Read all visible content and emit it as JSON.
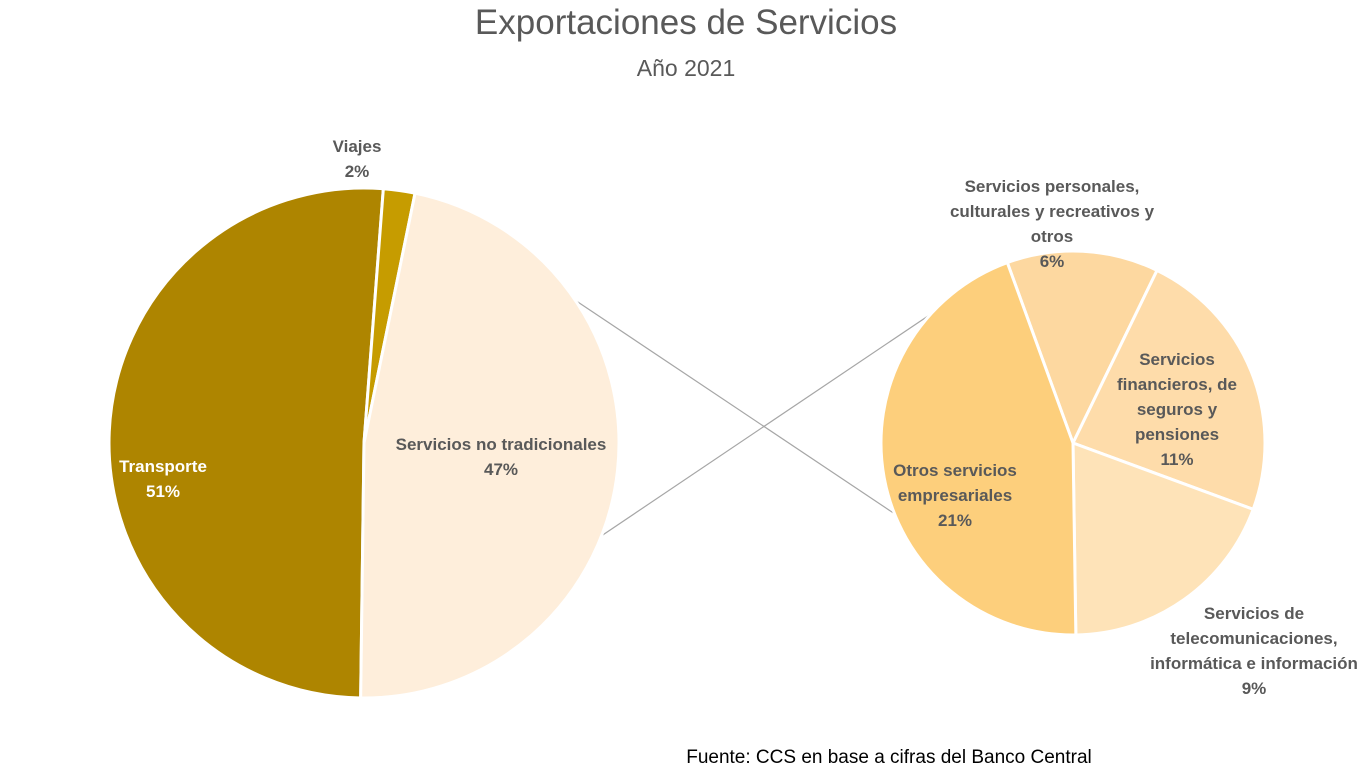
{
  "chart_data": [
    {
      "type": "pie",
      "title": "Exportaciones de Servicios",
      "subtitle": "Año 2021",
      "slices": [
        {
          "label": "Transporte",
          "value": 51,
          "display": "51%",
          "color": "#ae8500"
        },
        {
          "label": "Viajes",
          "value": 2,
          "display": "2%",
          "color": "#c69c00"
        },
        {
          "label": "Servicios no tradicionales",
          "value": 47,
          "display": "47%",
          "color": "#feeedb"
        }
      ]
    },
    {
      "type": "pie",
      "breakdown_of": "Servicios no tradicionales",
      "slices": [
        {
          "label": "Servicios personales, culturales y recreativos y otros",
          "label_lines": [
            "Servicios personales,",
            "culturales y recreativos y",
            "otros"
          ],
          "value": 6,
          "display": "6%",
          "color": "#fdd8a0"
        },
        {
          "label": "Servicios financieros, de seguros y pensiones",
          "label_lines": [
            "Servicios",
            "financieros, de",
            "seguros y",
            "pensiones"
          ],
          "value": 11,
          "display": "11%",
          "color": "#fedcaa"
        },
        {
          "label": "Servicios de telecomunicaciones, informática e información",
          "label_lines": [
            "Servicios de",
            "telecomunicaciones,",
            "informática e información"
          ],
          "value": 9,
          "display": "9%",
          "color": "#fee3b8"
        },
        {
          "label": "Otros servicios empresariales",
          "label_lines": [
            "Otros servicios",
            "empresariales"
          ],
          "value": 21,
          "display": "21%",
          "color": "#fdcf7c"
        }
      ]
    }
  ],
  "source": "Fuente: CCS en base a cifras del Banco Central"
}
